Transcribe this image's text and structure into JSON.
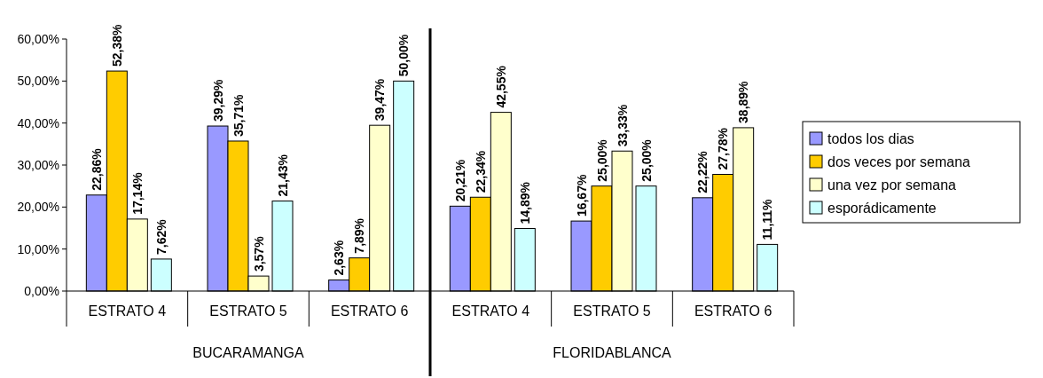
{
  "chart_data": {
    "type": "bar",
    "categories": [
      "ESTRATO 4",
      "ESTRATO 5",
      "ESTRATO 6",
      "ESTRATO 4",
      "ESTRATO 5",
      "ESTRATO 6"
    ],
    "series": [
      {
        "name": "todos los dias",
        "color": "#9999ff",
        "values": [
          22.86,
          39.29,
          2.63,
          20.21,
          16.67,
          22.22
        ],
        "value_labels": [
          "22,86%",
          "39,29%",
          "2,63%",
          "20,21%",
          "16,67%",
          "22,22%"
        ]
      },
      {
        "name": "dos veces por semana",
        "color": "#ffcc00",
        "values": [
          52.38,
          35.71,
          7.89,
          22.34,
          25.0,
          27.78
        ],
        "value_labels": [
          "52,38%",
          "35,71%",
          "7,89%",
          "22,34%",
          "25,00%",
          "27,78%"
        ]
      },
      {
        "name": "una vez por semana",
        "color": "#ffffcc",
        "values": [
          17.14,
          3.57,
          39.47,
          42.55,
          33.33,
          38.89
        ],
        "value_labels": [
          "17,14%",
          "3,57%",
          "39,47%",
          "42,55%",
          "33,33%",
          "38,89%"
        ]
      },
      {
        "name": "esporádicamente",
        "color": "#ccffff",
        "values": [
          7.62,
          21.43,
          50.0,
          14.89,
          25.0,
          11.11
        ],
        "value_labels": [
          "7,62%",
          "21,43%",
          "50,00%",
          "14,89%",
          "25,00%",
          "11,11%"
        ]
      }
    ],
    "ylim": [
      0,
      60
    ],
    "yticks": [
      {
        "value": 0,
        "label": "0,00%"
      },
      {
        "value": 10,
        "label": "10,00%"
      },
      {
        "value": 20,
        "label": "20,00%"
      },
      {
        "value": 30,
        "label": "30,00%"
      },
      {
        "value": 40,
        "label": "40,00%"
      },
      {
        "value": 50,
        "label": "50,00%"
      },
      {
        "value": 60,
        "label": "60,00%"
      }
    ],
    "annotations": [
      "BUCARAMANGA",
      "FLORIDABLANCA"
    ],
    "legend": "right"
  }
}
